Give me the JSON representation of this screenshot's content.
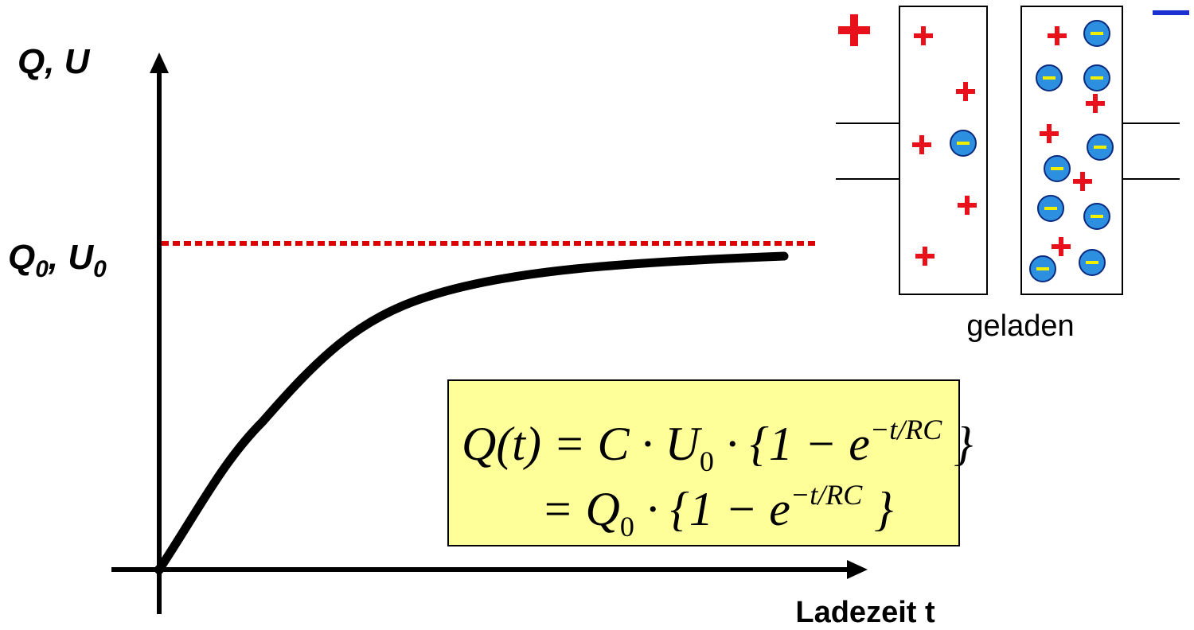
{
  "axes": {
    "y_label": "Q, U",
    "level_label": {
      "q": "Q",
      "q_sub": "0",
      "sep_u": ", U",
      "u_sub": "0"
    },
    "x_label": "Ladezeit t"
  },
  "capacitor": {
    "caption": "geladen"
  },
  "formula": {
    "line1": {
      "main": "Q(t) = C · U",
      "sub": "0",
      "mid": " · {1 − e",
      "sup": "−t/RC",
      "end": " }"
    },
    "line2": {
      "main": "= Q",
      "sub": "0",
      "mid": " · {1 − e",
      "sup": "−t/RC",
      "end": " }"
    }
  }
}
